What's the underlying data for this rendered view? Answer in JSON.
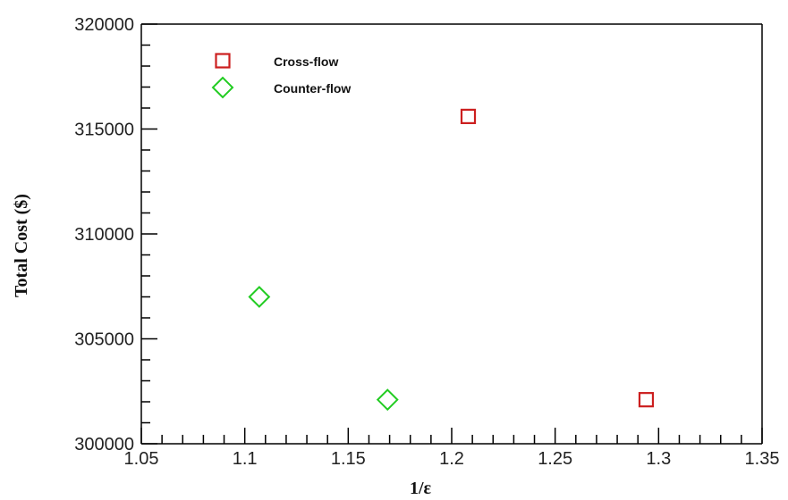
{
  "chart_data": {
    "type": "scatter",
    "title": "",
    "xlabel": "1/ε",
    "ylabel": "Total Cost ($)",
    "xlim": [
      1.05,
      1.35
    ],
    "ylim": [
      300000,
      320000
    ],
    "x_ticks": [
      "1.05",
      "1.1",
      "1.15",
      "1.2",
      "1.25",
      "1.3",
      "1.35"
    ],
    "x_tick_values": [
      1.05,
      1.1,
      1.15,
      1.2,
      1.25,
      1.3,
      1.35
    ],
    "y_ticks": [
      "300000",
      "305000",
      "310000",
      "315000",
      "320000"
    ],
    "y_tick_values": [
      300000,
      305000,
      310000,
      315000,
      320000
    ],
    "grid": false,
    "legend_position": "top-left",
    "series": [
      {
        "name": "Cross-flow",
        "marker": "square",
        "color": "#cc1f1f",
        "points": [
          {
            "x": 1.208,
            "y": 315600
          },
          {
            "x": 1.294,
            "y": 302100
          }
        ]
      },
      {
        "name": "Counter-flow",
        "marker": "diamond",
        "color": "#22cc22",
        "points": [
          {
            "x": 1.107,
            "y": 307000
          },
          {
            "x": 1.169,
            "y": 302100
          }
        ]
      }
    ]
  }
}
